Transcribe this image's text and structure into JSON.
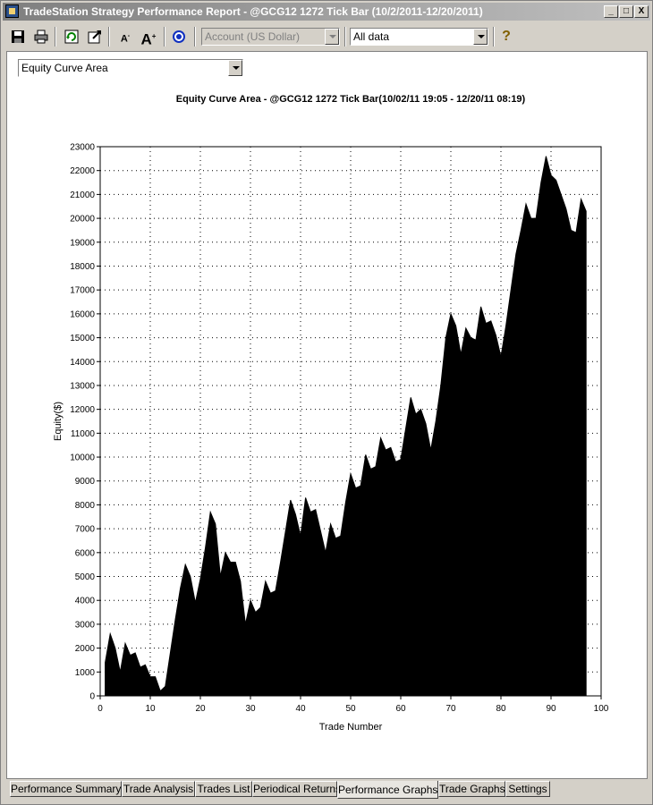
{
  "window": {
    "title": "TradeStation Strategy Performance Report - @GCG12 1272 Tick Bar (10/2/2011-12/20/2011)",
    "controls": [
      "_",
      "□",
      "X"
    ]
  },
  "toolbar": {
    "account_combo": "Account (US Dollar)",
    "data_combo": "All data",
    "help_glyph": "?"
  },
  "graph_selector": {
    "value": "Equity Curve Area"
  },
  "chart_data": {
    "type": "area",
    "title": "Equity Curve Area - @GCG12 1272 Tick Bar(10/02/11 19:05 - 12/20/11 08:19)",
    "xlabel": "Trade Number",
    "ylabel": "Equity($)",
    "xlim": [
      0,
      100
    ],
    "ylim": [
      0,
      23000
    ],
    "x_ticks": [
      0,
      10,
      20,
      30,
      40,
      50,
      60,
      70,
      80,
      90,
      100
    ],
    "y_ticks": [
      0,
      1000,
      2000,
      3000,
      4000,
      5000,
      6000,
      7000,
      8000,
      9000,
      10000,
      11000,
      12000,
      13000,
      14000,
      15000,
      16000,
      17000,
      18000,
      19000,
      20000,
      21000,
      22000,
      23000
    ],
    "grid": true,
    "fill_color": "#000000",
    "x": [
      1,
      2,
      3,
      4,
      5,
      6,
      7,
      8,
      9,
      10,
      11,
      12,
      13,
      14,
      15,
      16,
      17,
      18,
      19,
      20,
      21,
      22,
      23,
      24,
      25,
      26,
      27,
      28,
      29,
      30,
      31,
      32,
      33,
      34,
      35,
      36,
      37,
      38,
      39,
      40,
      41,
      42,
      43,
      44,
      45,
      46,
      47,
      48,
      49,
      50,
      51,
      52,
      53,
      54,
      55,
      56,
      57,
      58,
      59,
      60,
      61,
      62,
      63,
      64,
      65,
      66,
      67,
      68,
      69,
      70,
      71,
      72,
      73,
      74,
      75,
      76,
      77,
      78,
      79,
      80,
      81,
      82,
      83,
      84,
      85,
      86,
      87,
      88,
      89,
      90,
      91,
      92,
      93,
      94,
      95,
      96,
      97
    ],
    "values": [
      1400,
      2600,
      2000,
      1000,
      2200,
      1700,
      1800,
      1200,
      1300,
      800,
      800,
      200,
      400,
      1800,
      3200,
      4500,
      5500,
      5000,
      3900,
      4900,
      6200,
      7700,
      7200,
      5000,
      6000,
      5600,
      5600,
      4800,
      3000,
      4000,
      3500,
      3700,
      4800,
      4300,
      4400,
      5600,
      6900,
      8200,
      7600,
      6700,
      8300,
      7700,
      7800,
      6900,
      6000,
      7200,
      6600,
      6700,
      8100,
      9300,
      8700,
      8800,
      10100,
      9500,
      9600,
      10800,
      10300,
      10400,
      9800,
      9900,
      11200,
      12500,
      11800,
      12000,
      11400,
      10300,
      11500,
      13000,
      15000,
      16000,
      15500,
      14300,
      15400,
      15000,
      14900,
      16300,
      15600,
      15700,
      15100,
      14200,
      15500,
      17000,
      18500,
      19500,
      20600,
      20000,
      20000,
      21500,
      22600,
      21800,
      21600,
      21000,
      20400,
      19500,
      19400,
      20800,
      20300
    ]
  },
  "tabs": [
    "Performance Summary",
    "Trade Analysis",
    "Trades List",
    "Periodical Returns",
    "Performance Graphs",
    "Trade Graphs",
    "Settings"
  ],
  "active_tab": "Performance Graphs"
}
